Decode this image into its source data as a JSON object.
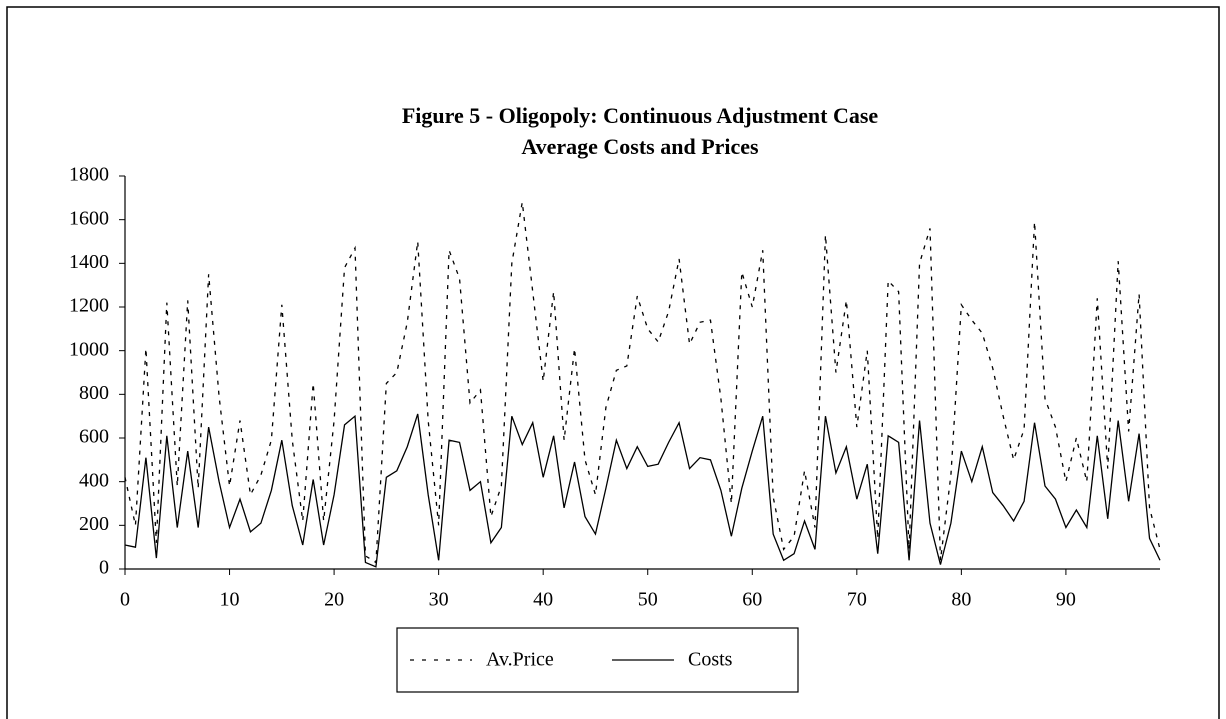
{
  "chart_data": {
    "type": "line",
    "title": "Figure 5 - Oligopoly: Continuous Adjustment Case",
    "subtitle": "Average Costs and Prices",
    "x": [
      0,
      1,
      2,
      3,
      4,
      5,
      6,
      7,
      8,
      9,
      10,
      11,
      12,
      13,
      14,
      15,
      16,
      17,
      18,
      19,
      20,
      21,
      22,
      23,
      24,
      25,
      26,
      27,
      28,
      29,
      30,
      31,
      32,
      33,
      34,
      35,
      36,
      37,
      38,
      39,
      40,
      41,
      42,
      43,
      44,
      45,
      46,
      47,
      48,
      49,
      50,
      51,
      52,
      53,
      54,
      55,
      56,
      57,
      58,
      59,
      60,
      61,
      62,
      63,
      64,
      65,
      66,
      67,
      68,
      69,
      70,
      71,
      72,
      73,
      74,
      75,
      76,
      77,
      78,
      79,
      80,
      81,
      82,
      83,
      84,
      85,
      86,
      87,
      88,
      89,
      90,
      91,
      92,
      93,
      94,
      95,
      96,
      97,
      98,
      99
    ],
    "series": [
      {
        "name": "Av.Price",
        "color": "#000000",
        "dash": true,
        "values": [
          420,
          200,
          1010,
          120,
          1220,
          380,
          1230,
          370,
          1350,
          790,
          380,
          680,
          340,
          430,
          590,
          1210,
          590,
          220,
          850,
          220,
          680,
          1380,
          1470,
          60,
          30,
          850,
          900,
          1130,
          1500,
          680,
          200,
          1460,
          1330,
          760,
          820,
          240,
          380,
          1400,
          1680,
          1270,
          860,
          1270,
          590,
          1010,
          500,
          340,
          740,
          910,
          930,
          1250,
          1100,
          1040,
          1180,
          1420,
          1030,
          1130,
          1140,
          780,
          300,
          1360,
          1200,
          1460,
          330,
          90,
          150,
          450,
          190,
          1530,
          900,
          1230,
          650,
          1000,
          140,
          1320,
          1270,
          90,
          1400,
          1560,
          40,
          430,
          1210,
          1140,
          1080,
          920,
          700,
          500,
          640,
          1590,
          780,
          650,
          400,
          600,
          400,
          1240,
          460,
          1410,
          630,
          1260,
          280,
          90
        ]
      },
      {
        "name": "Costs",
        "color": "#000000",
        "dash": false,
        "values": [
          110,
          100,
          510,
          50,
          610,
          190,
          540,
          190,
          650,
          400,
          190,
          320,
          170,
          210,
          360,
          590,
          290,
          110,
          410,
          110,
          340,
          660,
          700,
          30,
          10,
          420,
          450,
          560,
          710,
          340,
          40,
          590,
          580,
          360,
          400,
          120,
          190,
          700,
          570,
          670,
          420,
          610,
          280,
          490,
          240,
          160,
          370,
          590,
          460,
          560,
          470,
          480,
          580,
          670,
          460,
          510,
          500,
          360,
          150,
          370,
          540,
          700,
          160,
          40,
          70,
          220,
          90,
          700,
          440,
          560,
          320,
          480,
          70,
          610,
          580,
          40,
          680,
          210,
          20,
          210,
          540,
          400,
          560,
          350,
          290,
          220,
          310,
          670,
          380,
          320,
          190,
          270,
          190,
          610,
          230,
          680,
          310,
          620,
          140,
          40
        ]
      }
    ],
    "xlim": [
      0,
      99
    ],
    "xticks": [
      0,
      10,
      20,
      30,
      40,
      50,
      60,
      70,
      80,
      90
    ],
    "ylim": [
      0,
      1800
    ],
    "yticks": [
      0,
      200,
      400,
      600,
      800,
      1000,
      1200,
      1400,
      1600,
      1800
    ]
  }
}
